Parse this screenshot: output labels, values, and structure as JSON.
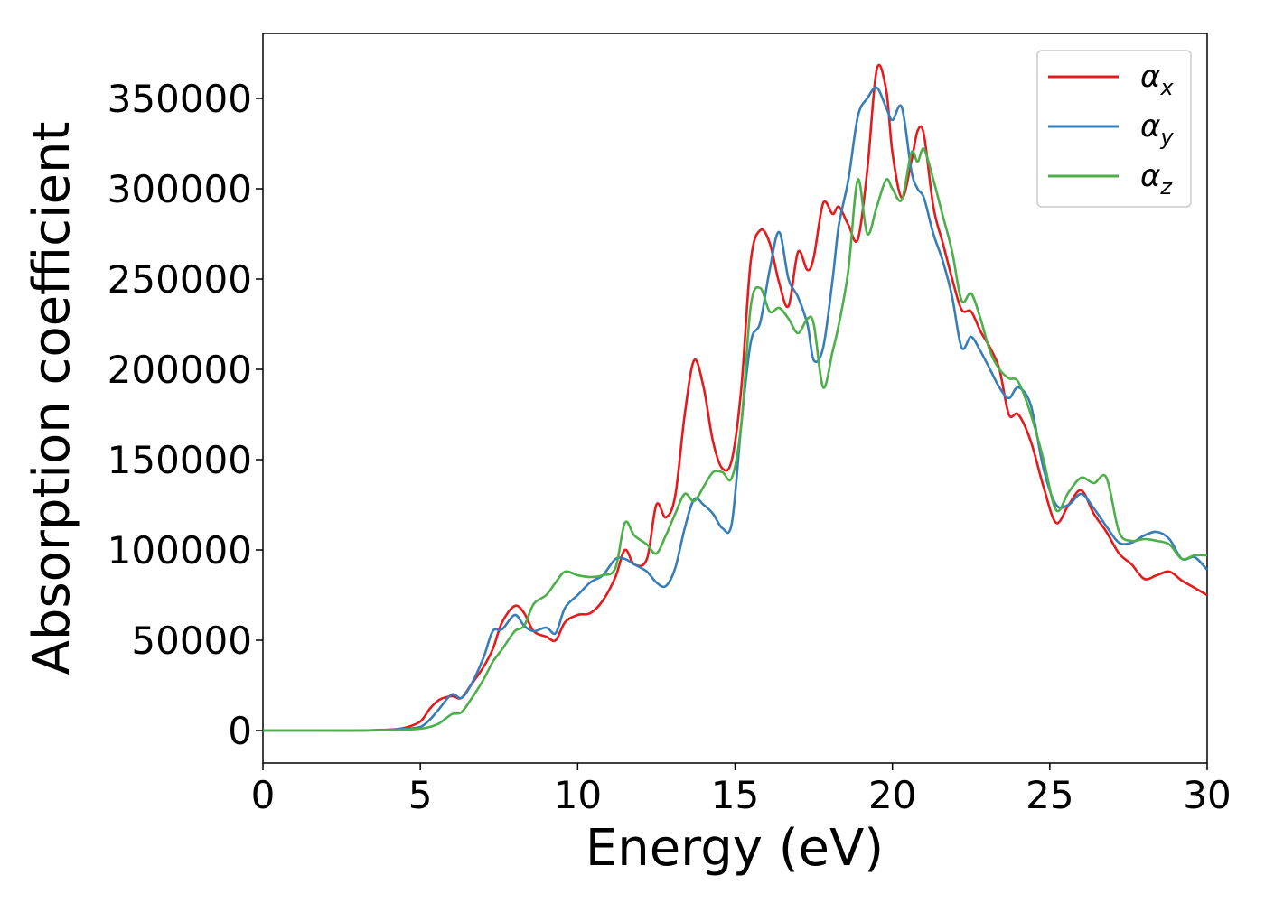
{
  "chart_data": {
    "type": "line",
    "xlabel": "Energy (eV)",
    "ylabel": "Absorption coefficient",
    "xlim": [
      0,
      30
    ],
    "ylim": [
      -18000,
      386000
    ],
    "xticks": [
      0,
      5,
      10,
      15,
      20,
      25,
      30
    ],
    "yticks": [
      0,
      50000,
      100000,
      150000,
      200000,
      250000,
      300000,
      350000
    ],
    "grid": false,
    "legend_position": "top-right",
    "series": [
      {
        "name": "αx",
        "symbol": "α",
        "subscript": "x",
        "color": "#e41a1c",
        "x": [
          0,
          1,
          2,
          3,
          4,
          4.5,
          5,
          5.3,
          5.6,
          6,
          6.3,
          6.6,
          7,
          7.3,
          7.6,
          8,
          8.3,
          8.6,
          9,
          9.3,
          9.6,
          10,
          10.4,
          10.8,
          11.2,
          11.5,
          11.8,
          12.2,
          12.5,
          12.8,
          13.1,
          13.4,
          13.7,
          14,
          14.3,
          14.6,
          14.9,
          15.2,
          15.5,
          15.8,
          16.1,
          16.4,
          16.7,
          17,
          17.3,
          17.5,
          17.8,
          18.1,
          18.3,
          18.6,
          18.9,
          19.2,
          19.5,
          19.8,
          20,
          20.3,
          20.6,
          20.8,
          21,
          21.3,
          21.6,
          21.9,
          22.2,
          22.5,
          22.8,
          23.1,
          23.4,
          23.7,
          24,
          24.4,
          24.8,
          25.2,
          25.6,
          26,
          26.4,
          26.8,
          27.2,
          27.6,
          28,
          28.4,
          28.8,
          29.2,
          29.6,
          30
        ],
        "y": [
          0,
          0,
          0,
          0,
          500,
          1500,
          5000,
          12000,
          17000,
          19000,
          18000,
          25000,
          35000,
          45000,
          60000,
          69000,
          65000,
          55000,
          52000,
          50000,
          60000,
          64000,
          65000,
          72000,
          85000,
          100000,
          92000,
          95000,
          125000,
          118000,
          130000,
          175000,
          205000,
          190000,
          160000,
          145000,
          150000,
          190000,
          260000,
          277000,
          270000,
          248000,
          235000,
          265000,
          255000,
          262000,
          292000,
          286000,
          290000,
          280000,
          272000,
          310000,
          366000,
          355000,
          320000,
          295000,
          315000,
          332000,
          330000,
          290000,
          270000,
          250000,
          233000,
          232000,
          221000,
          212000,
          200000,
          175000,
          175000,
          160000,
          135000,
          115000,
          125000,
          133000,
          120000,
          110000,
          98000,
          92000,
          84000,
          86000,
          88000,
          83000,
          79000,
          75000
        ]
      },
      {
        "name": "αy",
        "symbol": "α",
        "subscript": "y",
        "color": "#377eb8",
        "x": [
          0,
          1,
          2,
          3,
          4,
          4.5,
          5,
          5.3,
          5.6,
          6,
          6.3,
          6.6,
          7,
          7.3,
          7.6,
          8,
          8.3,
          8.6,
          9,
          9.3,
          9.6,
          10,
          10.4,
          10.8,
          11.2,
          11.5,
          11.8,
          12.2,
          12.5,
          12.8,
          13.1,
          13.4,
          13.7,
          14,
          14.3,
          14.6,
          14.9,
          15.2,
          15.5,
          15.8,
          16.1,
          16.4,
          16.7,
          17,
          17.3,
          17.5,
          17.8,
          18.1,
          18.3,
          18.6,
          18.9,
          19.2,
          19.5,
          19.8,
          20,
          20.3,
          20.6,
          20.8,
          21,
          21.3,
          21.6,
          21.9,
          22.2,
          22.5,
          22.8,
          23.1,
          23.4,
          23.7,
          24,
          24.4,
          24.8,
          25.2,
          25.6,
          26,
          26.4,
          26.8,
          27.2,
          27.6,
          28,
          28.4,
          28.8,
          29.2,
          29.6,
          30
        ],
        "y": [
          0,
          0,
          0,
          0,
          400,
          1000,
          2000,
          6000,
          12000,
          20000,
          18000,
          25000,
          40000,
          55000,
          56000,
          64000,
          58000,
          55000,
          57000,
          54000,
          68000,
          75000,
          82000,
          86000,
          95000,
          95000,
          92000,
          88000,
          82000,
          80000,
          90000,
          112000,
          128000,
          125000,
          120000,
          112000,
          115000,
          170000,
          215000,
          226000,
          255000,
          276000,
          250000,
          240000,
          225000,
          205000,
          212000,
          250000,
          280000,
          305000,
          340000,
          350000,
          356000,
          345000,
          338000,
          345000,
          310000,
          300000,
          295000,
          275000,
          260000,
          240000,
          212000,
          218000,
          210000,
          200000,
          190000,
          184000,
          190000,
          180000,
          145000,
          125000,
          125000,
          131000,
          123000,
          113000,
          104000,
          104000,
          108000,
          110000,
          106000,
          95000,
          96000,
          89000
        ]
      },
      {
        "name": "αz",
        "symbol": "α",
        "subscript": "z",
        "color": "#4daf4a",
        "x": [
          0,
          1,
          2,
          3,
          4,
          4.5,
          5,
          5.3,
          5.6,
          6,
          6.3,
          6.6,
          7,
          7.3,
          7.6,
          8,
          8.3,
          8.6,
          9,
          9.3,
          9.6,
          10,
          10.4,
          10.8,
          11.2,
          11.5,
          11.8,
          12.2,
          12.5,
          12.8,
          13.1,
          13.4,
          13.7,
          14,
          14.3,
          14.6,
          14.9,
          15.2,
          15.5,
          15.8,
          16.1,
          16.4,
          16.7,
          17,
          17.3,
          17.5,
          17.8,
          18.1,
          18.3,
          18.6,
          18.9,
          19.2,
          19.5,
          19.8,
          20,
          20.3,
          20.6,
          20.8,
          21,
          21.3,
          21.6,
          21.9,
          22.2,
          22.5,
          22.8,
          23.1,
          23.4,
          23.7,
          24,
          24.4,
          24.8,
          25.2,
          25.6,
          26,
          26.4,
          26.8,
          27.2,
          27.6,
          28,
          28.4,
          28.8,
          29.2,
          29.6,
          30
        ],
        "y": [
          0,
          0,
          0,
          0,
          200,
          500,
          1000,
          2000,
          4000,
          9000,
          10000,
          17000,
          28000,
          38000,
          45000,
          55000,
          58000,
          70000,
          75000,
          82000,
          88000,
          86000,
          85000,
          86000,
          90000,
          115000,
          108000,
          103000,
          98000,
          108000,
          120000,
          131000,
          127000,
          135000,
          143000,
          143000,
          140000,
          170000,
          235000,
          245000,
          232000,
          234000,
          228000,
          220000,
          228000,
          225000,
          190000,
          210000,
          225000,
          255000,
          305000,
          275000,
          290000,
          305000,
          300000,
          294000,
          320000,
          315000,
          322000,
          305000,
          285000,
          265000,
          238000,
          242000,
          228000,
          210000,
          200000,
          195000,
          193000,
          175000,
          150000,
          122000,
          132000,
          140000,
          137000,
          140000,
          110000,
          105000,
          106000,
          105000,
          103000,
          95000,
          97000,
          97000
        ]
      }
    ]
  }
}
